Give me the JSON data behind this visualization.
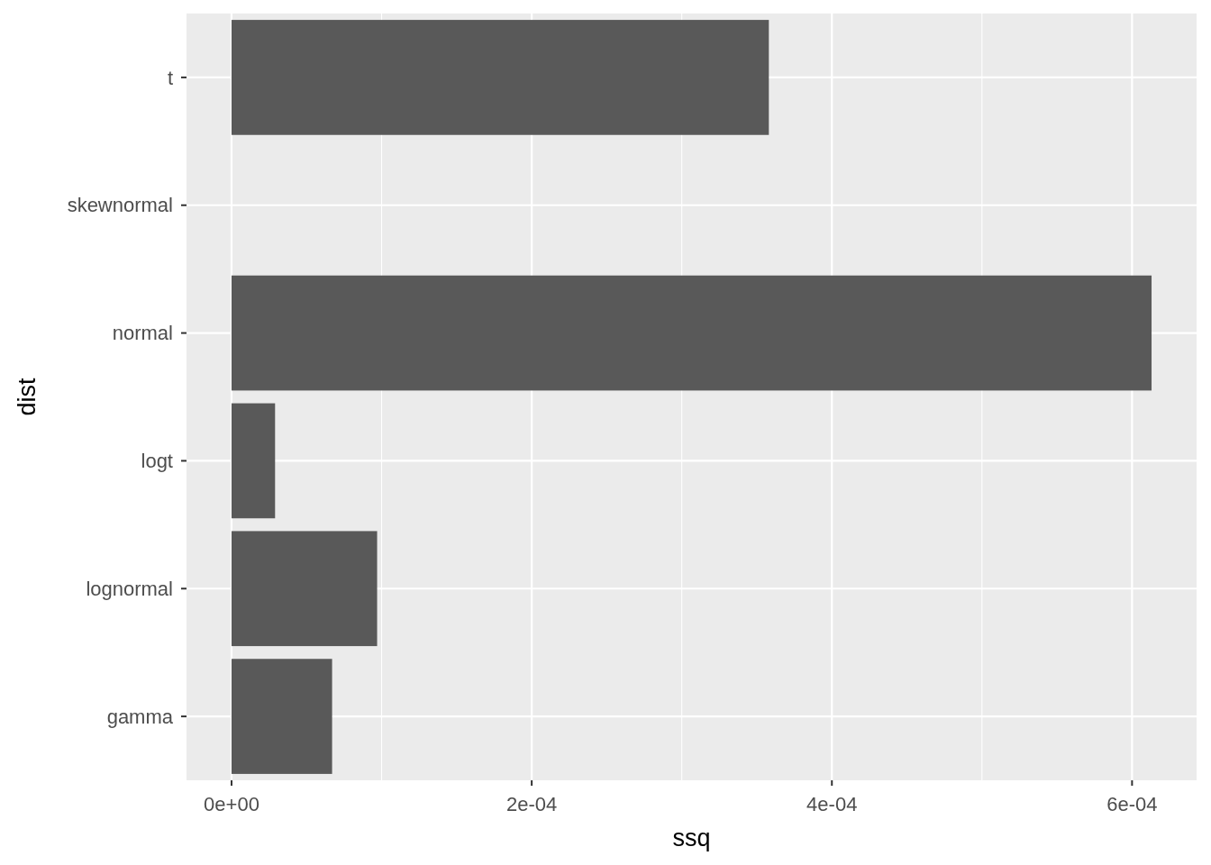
{
  "chart_data": {
    "type": "bar",
    "orientation": "horizontal",
    "xlabel": "ssq",
    "ylabel": "dist",
    "categories": [
      "t",
      "skewnormal",
      "normal",
      "logt",
      "lognormal",
      "gamma"
    ],
    "values": [
      0.000358,
      0,
      0.000613,
      2.9e-05,
      9.7e-05,
      6.7e-05
    ],
    "color": "#595959",
    "xlim": [
      -3e-05,
      0.000643
    ],
    "xticks": [
      {
        "value": 0,
        "label": "0e+00"
      },
      {
        "value": 0.0002,
        "label": "2e-04"
      },
      {
        "value": 0.0004,
        "label": "4e-04"
      },
      {
        "value": 0.0006,
        "label": "6e-04"
      }
    ],
    "grid": true
  }
}
